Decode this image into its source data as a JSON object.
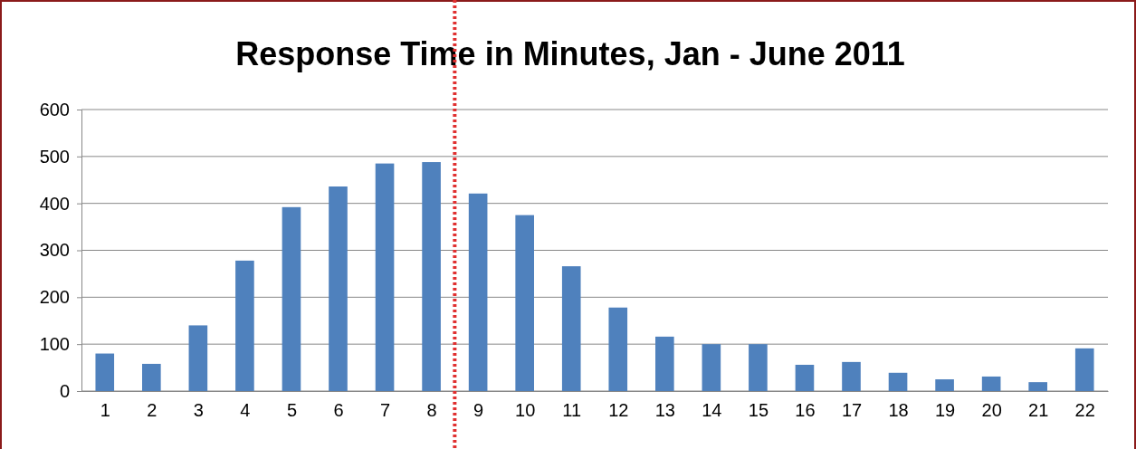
{
  "chart_data": {
    "type": "bar",
    "title": "Response Time in Minutes, Jan - June 2011",
    "x": [
      1,
      2,
      3,
      4,
      5,
      6,
      7,
      8,
      9,
      10,
      11,
      12,
      13,
      14,
      15,
      16,
      17,
      18,
      19,
      20,
      21,
      22
    ],
    "values": [
      80,
      58,
      140,
      278,
      392,
      436,
      485,
      488,
      421,
      375,
      266,
      178,
      116,
      100,
      100,
      56,
      62,
      39,
      25,
      31,
      19,
      91
    ],
    "color": "#4f81bd",
    "xlim": [
      0.5,
      22.5
    ],
    "xticks": [
      1,
      2,
      3,
      4,
      5,
      6,
      7,
      8,
      9,
      10,
      11,
      12,
      13,
      14,
      15,
      16,
      17,
      18,
      19,
      20,
      21,
      22
    ],
    "ylim": [
      0,
      600
    ],
    "yticks": [
      0,
      100,
      200,
      300,
      400,
      500,
      600
    ],
    "grid": "y",
    "ref_lines": [
      {
        "axis": "x",
        "value": 8.5,
        "color": "#e03030",
        "line_style": "dotted"
      }
    ]
  }
}
